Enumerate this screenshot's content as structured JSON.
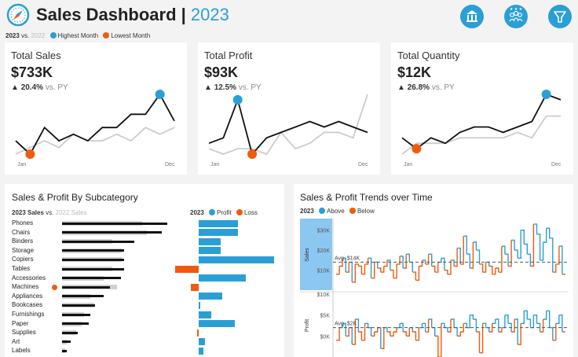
{
  "header": {
    "title": "Sales Dashboard",
    "separator": "|",
    "year": "2023",
    "icons": [
      "compass-icon",
      "bank-icon",
      "users-icon",
      "filter-icon"
    ]
  },
  "legend": {
    "current": "2023",
    "vs": "vs.",
    "previous": "2022",
    "highest": "Highest Month",
    "lowest": "Lowest Month"
  },
  "colors": {
    "accent": "#2a9fd6",
    "orange": "#f05a0e",
    "dark": "#111111",
    "light": "#cccccc"
  },
  "kpis": [
    {
      "title": "Total Sales",
      "value": "$733K",
      "delta": "20.4%",
      "vs": "vs. PY",
      "start": "Jan",
      "end": "Dec",
      "cur": [
        4,
        2,
        6,
        4,
        5,
        4,
        6,
        6,
        8,
        8,
        11,
        7
      ],
      "prev": [
        2,
        3,
        4,
        3,
        5,
        4,
        4,
        5,
        4,
        6,
        5,
        6
      ],
      "max_idx": 10,
      "min_idx": 1
    },
    {
      "title": "Total Profit",
      "value": "$93K",
      "delta": "12.5%",
      "vs": "vs. PY",
      "start": "Jan",
      "end": "Dec",
      "cur": [
        3,
        4,
        11,
        1,
        4,
        5,
        6,
        7,
        6,
        7,
        6,
        5
      ],
      "prev": [
        2,
        1,
        2,
        2,
        1,
        5,
        2,
        3,
        5,
        5,
        4,
        12
      ],
      "max_idx": 2,
      "min_idx": 3
    },
    {
      "title": "Total Quantity",
      "value": "$12K",
      "delta": "26.8%",
      "vs": "vs. PY",
      "start": "Jan",
      "end": "Dec",
      "cur": [
        4,
        2,
        4,
        3,
        5,
        6,
        6,
        5,
        6,
        7,
        12,
        11
      ],
      "prev": [
        1,
        3,
        3,
        3,
        4,
        4,
        4,
        4,
        5,
        4,
        8,
        8
      ],
      "max_idx": 10,
      "min_idx": 1
    }
  ],
  "subcategory": {
    "title": "Sales & Profit By Subcategory",
    "legend_sales_current": "2023 Sales",
    "legend_vs": "vs.",
    "legend_sales_prev": "2022 Sales",
    "legend_profit_year": "2023",
    "legend_profit": "Profit",
    "legend_loss": "Loss"
  },
  "trends": {
    "title": "Sales & Profit Trends over Time",
    "legend_year": "2023",
    "legend_above": "Above",
    "legend_below": "Below",
    "sales_axis": "Sales",
    "profit_axis": "Profit",
    "sales_ticks": [
      "$30K",
      "$20K",
      "$10K"
    ],
    "profit_ticks": [
      "$10K",
      "$5K",
      "$0K"
    ],
    "sales_avg": "Avg. $14K",
    "profit_avg": "Avg. $2K",
    "sales_avg_value": 14,
    "profit_avg_value": 2,
    "sales_values": [
      8,
      12,
      16,
      9,
      14,
      4,
      13,
      12,
      8,
      13,
      16,
      6,
      14,
      11,
      9,
      12,
      15,
      10,
      6,
      13,
      17,
      11,
      18,
      14,
      9,
      5,
      12,
      15,
      13,
      18,
      12,
      9,
      14,
      16,
      10,
      8,
      15,
      12,
      21,
      13,
      27,
      18,
      11,
      24,
      20,
      13,
      9,
      14,
      12,
      8,
      11,
      9,
      22,
      18,
      12,
      25,
      20,
      16,
      30,
      23,
      18,
      12,
      33,
      28,
      15,
      24,
      31,
      26,
      9,
      13,
      22,
      8
    ],
    "profit_values": [
      -1,
      2,
      3,
      0,
      2,
      -2,
      4,
      1,
      -1,
      3,
      2,
      0,
      1,
      2,
      -3,
      2,
      1,
      0,
      1,
      2,
      3,
      1,
      0,
      2,
      1,
      -1,
      2,
      3,
      1,
      4,
      2,
      0,
      -5,
      3,
      2,
      1,
      4,
      2,
      0,
      1,
      3,
      2,
      5,
      4,
      1,
      -4,
      3,
      2,
      1,
      3,
      4,
      1,
      2,
      5,
      3,
      1,
      4,
      -2,
      3,
      6,
      4,
      2,
      5,
      3,
      1,
      4,
      6,
      2,
      -1,
      3,
      5,
      1
    ]
  },
  "chart_data": [
    {
      "type": "bar",
      "title": "Sales & Profit By Subcategory",
      "categories": [
        "Phones",
        "Chairs",
        "Binders",
        "Storage",
        "Copiers",
        "Tables",
        "Accessories",
        "Machines",
        "Appliances",
        "Bookcases",
        "Furnishings",
        "Paper",
        "Supplies",
        "Art",
        "Labels"
      ],
      "series": [
        {
          "name": "2023 Sales",
          "values": [
            105,
            100,
            72,
            62,
            62,
            62,
            59,
            48,
            42,
            33,
            28,
            27,
            16,
            9,
            5
          ]
        },
        {
          "name": "2022 Sales",
          "values": [
            80,
            85,
            50,
            60,
            60,
            50,
            42,
            55,
            28,
            32,
            22,
            20,
            14,
            5,
            3
          ]
        },
        {
          "name": "2023 Profit",
          "values": [
            25,
            25,
            14,
            14,
            48,
            -15,
            30,
            -5,
            15,
            1,
            8,
            23,
            -1,
            4,
            3
          ]
        }
      ]
    },
    {
      "type": "line",
      "title": "Sales & Profit Trends over Time",
      "series": [
        "Sales",
        "Profit"
      ],
      "ylim_sales": [
        0,
        35
      ],
      "ylim_profit": [
        -5,
        10
      ]
    }
  ]
}
